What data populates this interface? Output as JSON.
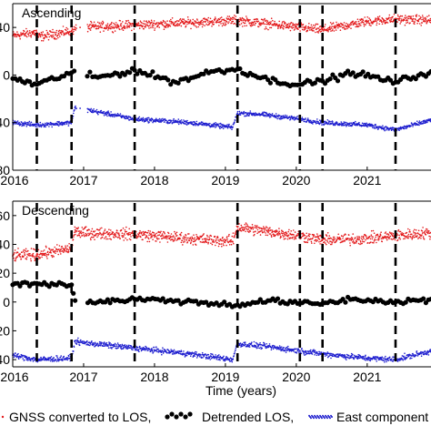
{
  "chart_data": [
    {
      "type": "scatter",
      "panel_label": "Ascending",
      "xlim": [
        2016,
        2021.9
      ],
      "ylim": [
        -80,
        60
      ],
      "yticks": [
        40,
        0,
        -40,
        -80
      ],
      "ytick_labels": [
        "40",
        "0",
        "40",
        "80"
      ],
      "xticks": [
        2016,
        2017,
        2018,
        2019,
        2020,
        2021
      ],
      "xtick_labels": [
        "2016",
        "2017",
        "2018",
        "2019",
        "2020",
        "2021"
      ],
      "grid": false,
      "event_lines_x": [
        2016.34,
        2016.83,
        2017.72,
        2019.17,
        2020.05,
        2020.37,
        2021.4
      ],
      "series": [
        {
          "color": "#e31a1c",
          "style": "dense-dots",
          "x": [
            2016.0,
            2016.34,
            2016.36,
            2016.83,
            2016.95,
            2017.72,
            2018.5,
            2019.17,
            2019.6,
            2020.05,
            2020.37,
            2021.0,
            2021.4,
            2021.9
          ],
          "y": [
            33,
            36,
            32,
            37,
            40,
            42,
            44,
            46,
            43,
            40,
            38,
            45,
            47,
            46
          ]
        },
        {
          "color": "#000000",
          "style": "circles",
          "x": [
            2016.0,
            2016.34,
            2016.83,
            2017.2,
            2017.72,
            2018.3,
            2018.8,
            2019.17,
            2019.6,
            2020.05,
            2020.37,
            2020.8,
            2021.4,
            2021.9
          ],
          "y": [
            -3,
            -8,
            2,
            -2,
            4,
            -6,
            3,
            5,
            -4,
            -8,
            -5,
            2,
            -6,
            3
          ]
        },
        {
          "color": "#1f1fcf",
          "style": "dense-dots",
          "x": [
            2016.0,
            2016.34,
            2016.36,
            2016.83,
            2016.88,
            2016.95,
            2017.2,
            2017.72,
            2018.5,
            2019.1,
            2019.17,
            2019.5,
            2020.05,
            2020.37,
            2021.0,
            2021.4,
            2021.9
          ],
          "y": [
            -40,
            -42,
            -42,
            -40,
            -27,
            -28,
            -31,
            -37,
            -40,
            -44,
            -32,
            -33,
            -37,
            -40,
            -42,
            -46,
            -38
          ]
        }
      ]
    },
    {
      "type": "scatter",
      "panel_label": "Descending",
      "xlim": [
        2016,
        2021.9
      ],
      "ylim": [
        -45,
        70
      ],
      "yticks": [
        60,
        40,
        20,
        0,
        -20,
        -40
      ],
      "ytick_labels": [
        "60",
        "40",
        "20",
        "0",
        "20",
        "40"
      ],
      "xticks": [
        2016,
        2017,
        2018,
        2019,
        2020,
        2021
      ],
      "xtick_labels": [
        "2016",
        "2017",
        "2018",
        "2019",
        "2020",
        "2021"
      ],
      "xlabel": "Time (years)",
      "grid": false,
      "event_lines_x": [
        2016.34,
        2016.83,
        2017.72,
        2019.17,
        2020.05,
        2020.37,
        2021.4
      ],
      "series": [
        {
          "color": "#e31a1c",
          "style": "dense-dots",
          "x": [
            2016.0,
            2016.34,
            2016.83,
            2016.88,
            2016.95,
            2017.72,
            2018.5,
            2019.1,
            2019.17,
            2019.6,
            2020.05,
            2020.37,
            2021.0,
            2021.4,
            2021.9
          ],
          "y": [
            32,
            33,
            37,
            50,
            48,
            47,
            44,
            42,
            52,
            49,
            46,
            43,
            44,
            46,
            48
          ]
        },
        {
          "color": "#000000",
          "style": "circles",
          "x": [
            2016.0,
            2016.34,
            2016.83,
            2016.88,
            2017.2,
            2017.72,
            2018.3,
            2018.8,
            2019.17,
            2019.6,
            2020.05,
            2020.37,
            2020.8,
            2021.4,
            2021.9
          ],
          "y": [
            12,
            13,
            12,
            1,
            0,
            2,
            1,
            -1,
            -2,
            1,
            -1,
            -1,
            2,
            0,
            2
          ]
        },
        {
          "color": "#1f1fcf",
          "style": "dense-dots",
          "x": [
            2016.0,
            2016.34,
            2016.83,
            2016.88,
            2016.95,
            2017.72,
            2018.5,
            2019.1,
            2019.17,
            2019.6,
            2020.05,
            2020.37,
            2021.0,
            2021.4,
            2021.9
          ],
          "y": [
            -37,
            -40,
            -39,
            -27,
            -28,
            -32,
            -36,
            -40,
            -29,
            -31,
            -34,
            -36,
            -39,
            -40,
            -34
          ]
        }
      ]
    }
  ],
  "legend": {
    "items": [
      {
        "label": "GNSS converted to LOS,",
        "color": "#e31a1c"
      },
      {
        "label": "Detrended LOS,",
        "color": "#000000"
      },
      {
        "label": "East component",
        "color": "#1f1fcf"
      }
    ]
  }
}
